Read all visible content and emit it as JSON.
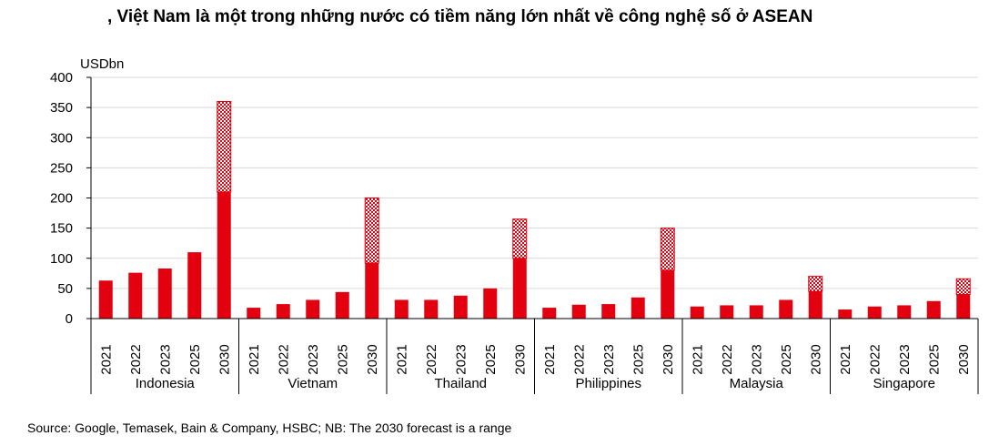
{
  "title": ", Việt Nam là một trong những nước có tiềm năng lớn nhất về công nghệ số ở ASEAN",
  "source": "Source: Google, Temasek, Bain & Company, HSBC; NB: The 2030 forecast is a range",
  "chart_data": {
    "type": "bar",
    "ylabel": "USDbn",
    "ylim": [
      0,
      400
    ],
    "yticks": [
      0,
      50,
      100,
      150,
      200,
      250,
      300,
      350,
      400
    ],
    "grid": true,
    "colors": {
      "bar": "#e3000f",
      "range_pattern": "#e3000f"
    },
    "groups": [
      {
        "name": "Indonesia",
        "categories": [
          "2021",
          "2022",
          "2023",
          "2025",
          "2030"
        ],
        "values": [
          63,
          76,
          83,
          110,
          210
        ],
        "range_high": 360
      },
      {
        "name": "Vietnam",
        "categories": [
          "2021",
          "2022",
          "2023",
          "2025",
          "2030"
        ],
        "values": [
          18,
          24,
          31,
          44,
          92
        ],
        "range_high": 200
      },
      {
        "name": "Thailand",
        "categories": [
          "2021",
          "2022",
          "2023",
          "2025",
          "2030"
        ],
        "values": [
          31,
          31,
          38,
          50,
          100
        ],
        "range_high": 165
      },
      {
        "name": "Philippines",
        "categories": [
          "2021",
          "2022",
          "2023",
          "2025",
          "2030"
        ],
        "values": [
          18,
          23,
          24,
          35,
          80
        ],
        "range_high": 150
      },
      {
        "name": "Malaysia",
        "categories": [
          "2021",
          "2022",
          "2023",
          "2025",
          "2030"
        ],
        "values": [
          20,
          22,
          22,
          31,
          45
        ],
        "range_high": 70
      },
      {
        "name": "Singapore",
        "categories": [
          "2021",
          "2022",
          "2023",
          "2025",
          "2030"
        ],
        "values": [
          15,
          20,
          22,
          29,
          40
        ],
        "range_high": 66
      }
    ]
  }
}
